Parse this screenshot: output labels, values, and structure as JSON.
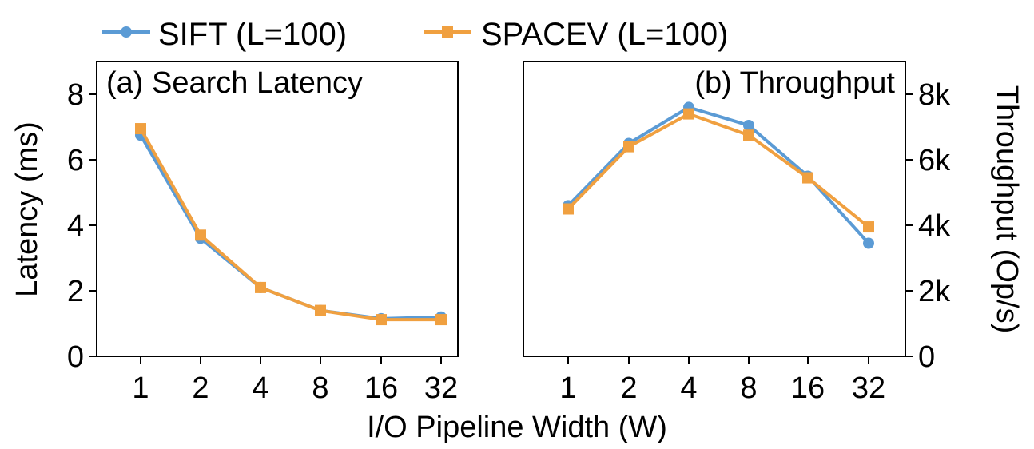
{
  "legend": {
    "placement": "top",
    "entries": [
      {
        "label": "SIFT (L=100)",
        "color": "#5b9bd5",
        "marker": "circle"
      },
      {
        "label": "SPACEV (L=100)",
        "color": "#f0a040",
        "marker": "square"
      }
    ]
  },
  "shared_xlabel": "I/O Pipeline Width (W)",
  "chart_data": [
    {
      "type": "line",
      "title": "(a) Search Latency",
      "categories": [
        "1",
        "2",
        "4",
        "8",
        "16",
        "32"
      ],
      "ylabel": "Latency (ms)",
      "ylim": [
        0,
        9
      ],
      "yticks": [
        0,
        2,
        4,
        6,
        8
      ],
      "ytick_labels": [
        "0",
        "2",
        "4",
        "6",
        "8"
      ],
      "y_axis_side": "left",
      "grid": false,
      "series": [
        {
          "name": "SIFT (L=100)",
          "color": "#5b9bd5",
          "marker": "circle",
          "values": [
            6.75,
            3.6,
            2.1,
            1.4,
            1.15,
            1.2
          ]
        },
        {
          "name": "SPACEV (L=100)",
          "color": "#f0a040",
          "marker": "square",
          "values": [
            6.95,
            3.7,
            2.1,
            1.4,
            1.12,
            1.12
          ]
        }
      ]
    },
    {
      "type": "line",
      "title": "(b) Throughput",
      "categories": [
        "1",
        "2",
        "4",
        "8",
        "16",
        "32"
      ],
      "ylabel": "Throughput (Op/s)",
      "ylim": [
        0,
        9000
      ],
      "yticks": [
        0,
        2000,
        4000,
        6000,
        8000
      ],
      "ytick_labels": [
        "0",
        "2k",
        "4k",
        "6k",
        "8k"
      ],
      "y_axis_side": "right",
      "grid": false,
      "series": [
        {
          "name": "SIFT (L=100)",
          "color": "#5b9bd5",
          "marker": "circle",
          "values": [
            4600,
            6500,
            7600,
            7050,
            5500,
            3450
          ]
        },
        {
          "name": "SPACEV (L=100)",
          "color": "#f0a040",
          "marker": "square",
          "values": [
            4500,
            6400,
            7400,
            6750,
            5450,
            3950
          ]
        }
      ]
    }
  ]
}
